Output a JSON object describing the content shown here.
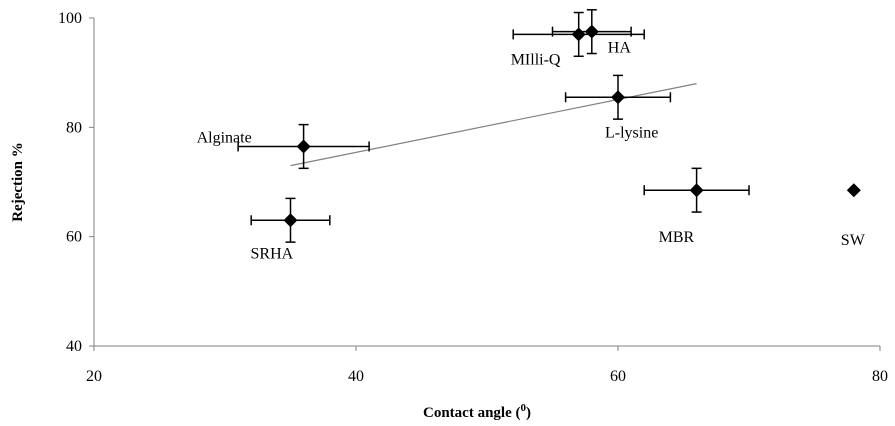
{
  "chart_data": {
    "type": "scatter",
    "xlabel": "Contact angle (",
    "xlabel_sup": "0",
    "xlabel_close": ")",
    "ylabel": "Rejection %",
    "xlim": [
      20,
      80
    ],
    "ylim": [
      40,
      100
    ],
    "xticks": [
      "20",
      "40",
      "60",
      "80"
    ],
    "yticks": [
      "40",
      "60",
      "80",
      "100"
    ],
    "grid": false,
    "legend": "none",
    "marker_color": "#000000",
    "trendline_color": "#808080",
    "points": [
      {
        "label": "MIlli-Q",
        "x": 57,
        "y": 97,
        "xerr": 5,
        "yerr": 4
      },
      {
        "label": "HA",
        "x": 58,
        "y": 97.5,
        "xerr": 3,
        "yerr": 4
      },
      {
        "label": "L-lysine",
        "x": 60,
        "y": 85.5,
        "xerr": 4,
        "yerr": 4
      },
      {
        "label": "Alginate",
        "x": 36,
        "y": 76.5,
        "xerr": 5,
        "yerr": 4
      },
      {
        "label": "SRHA",
        "x": 35,
        "y": 63,
        "xerr": 3,
        "yerr": 4
      },
      {
        "label": "MBR",
        "x": 66,
        "y": 68.5,
        "xerr": 4,
        "yerr": 4
      },
      {
        "label": "SW",
        "x": 78,
        "y": 68.5,
        "xerr": 0,
        "yerr": 0
      }
    ],
    "trendline": {
      "x1": 35,
      "y1": 73,
      "x2": 66,
      "y2": 88
    }
  }
}
